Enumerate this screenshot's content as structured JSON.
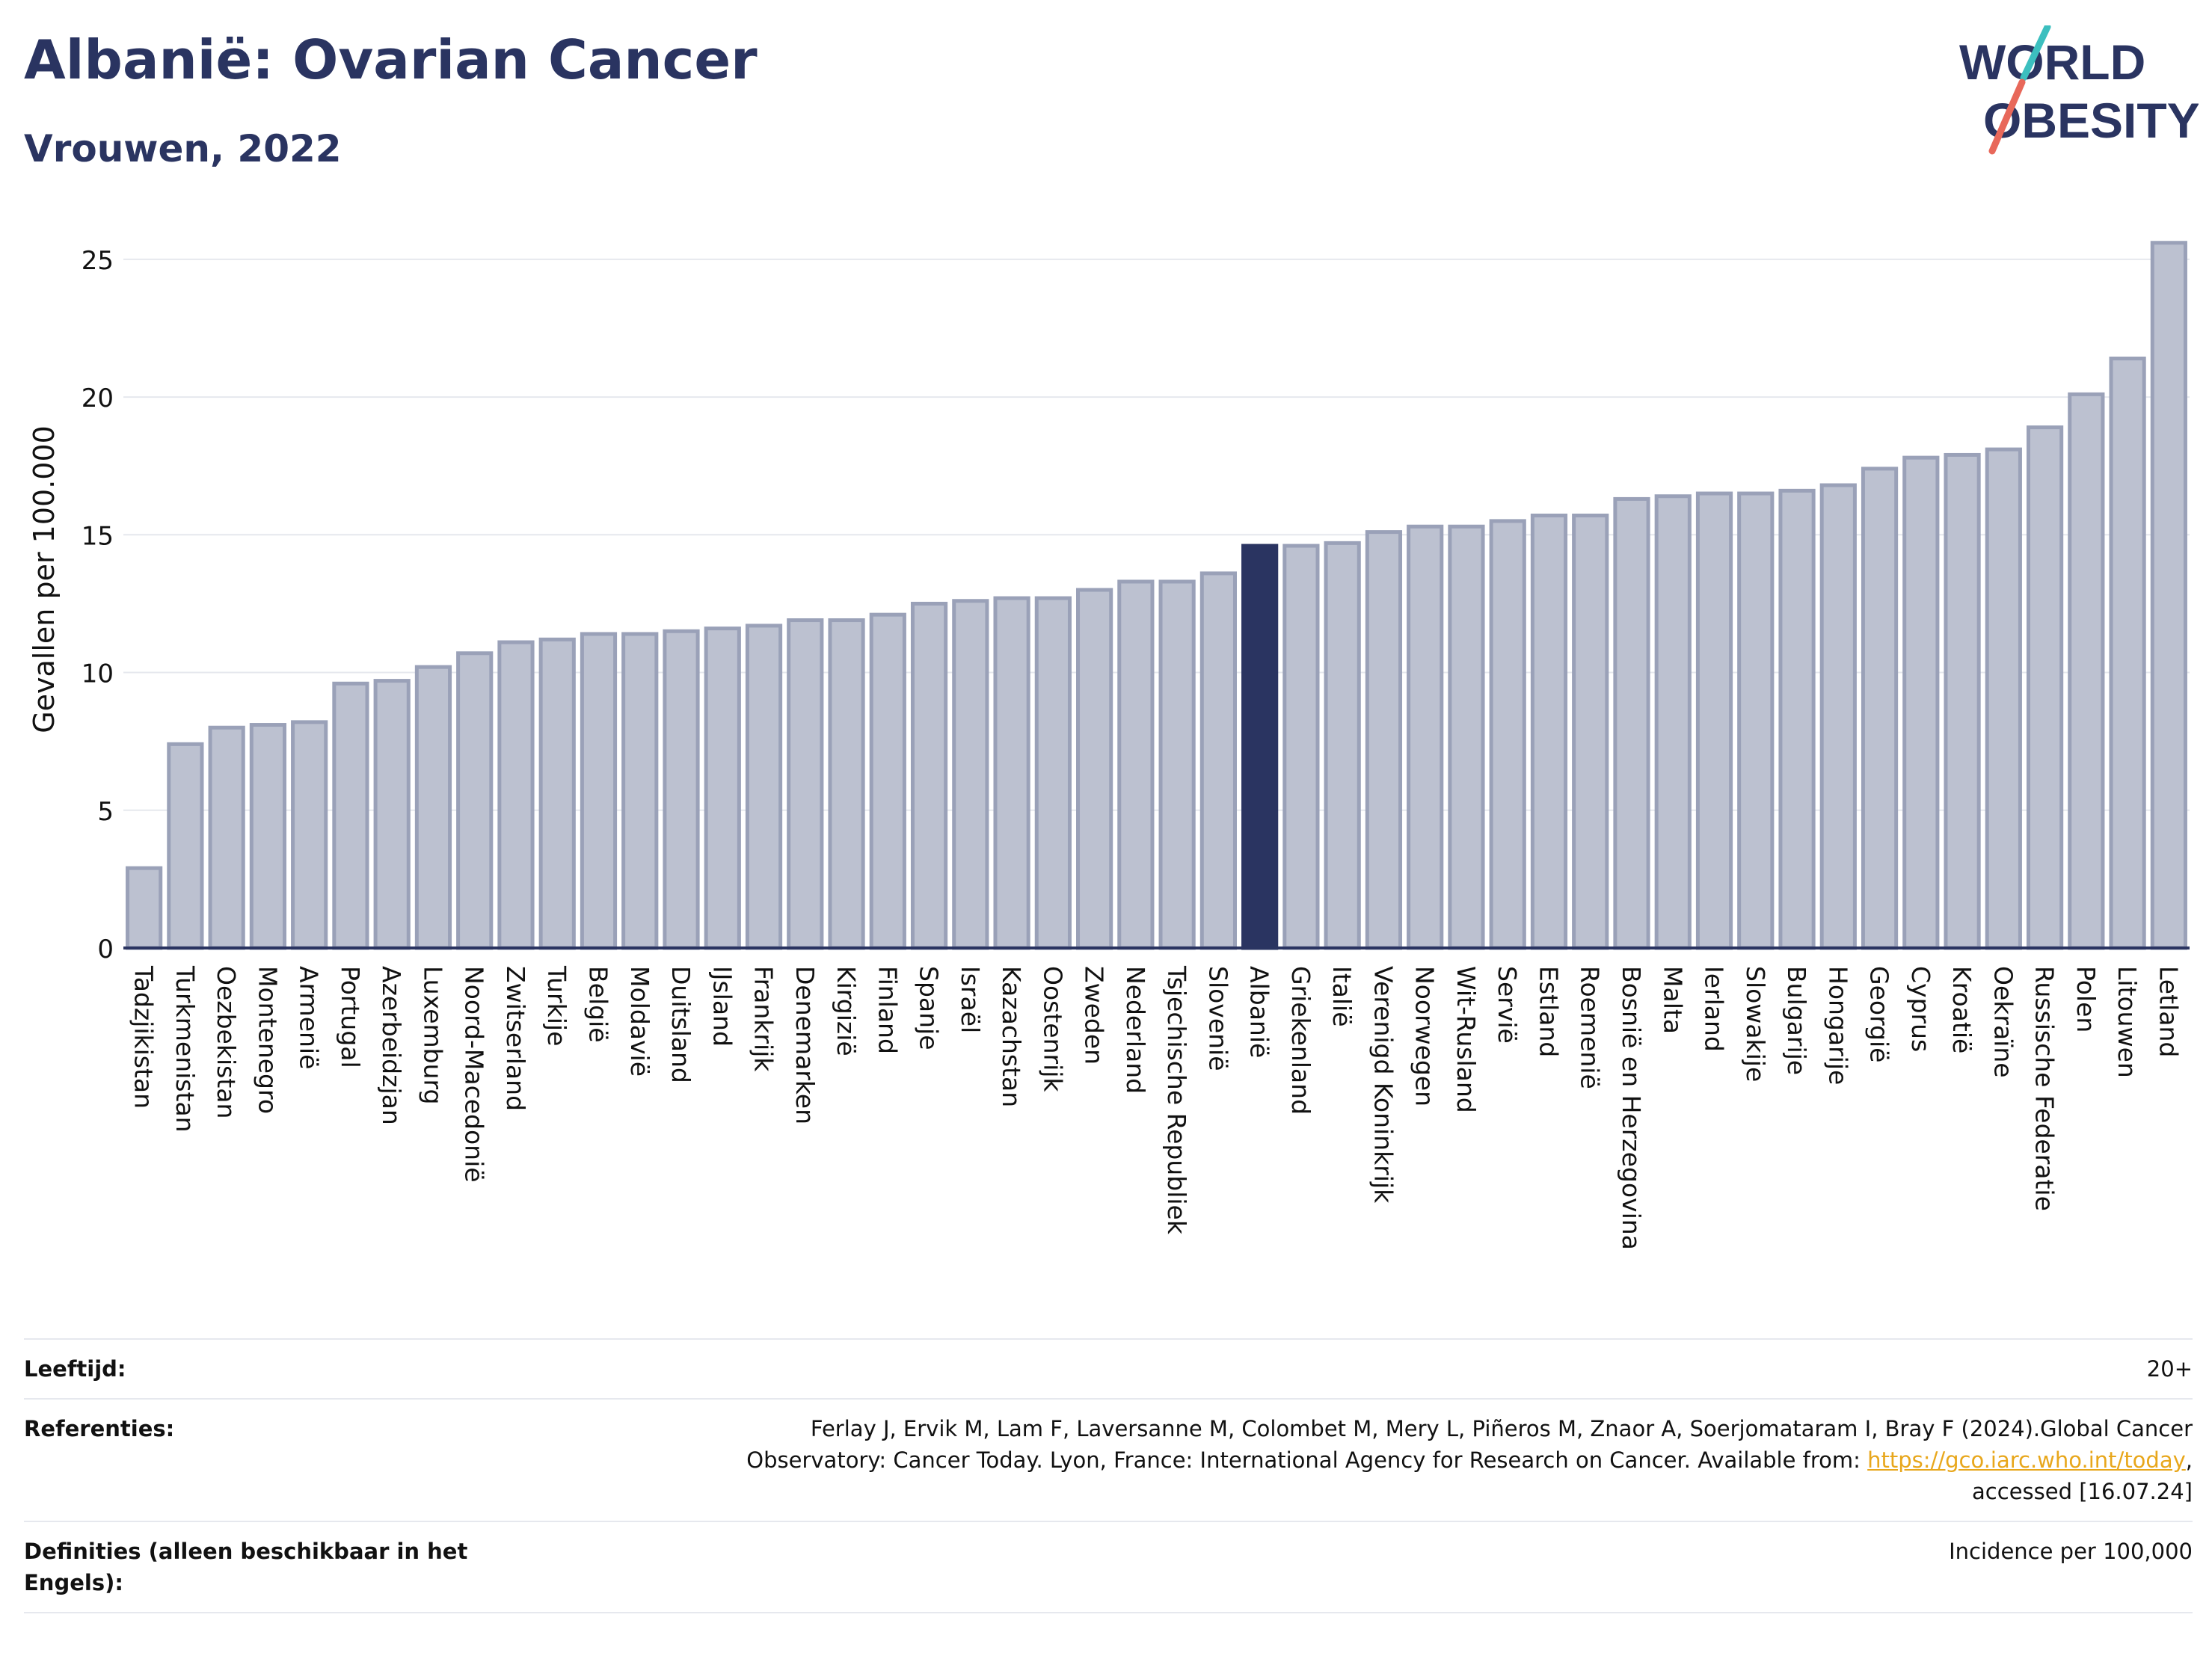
{
  "title": "Albanië: Ovarian Cancer",
  "subtitle": "Vrouwen, 2022",
  "logo": {
    "line1": "WORLD",
    "line2": "OBESITY",
    "accent_teal": "#3cbfbf",
    "accent_red": "#e8685a"
  },
  "colors": {
    "bar": "#bcc1d0",
    "bar_stroke": "#9aa1b8",
    "highlight": "#2a3461",
    "axis": "#2a3461",
    "grid": "#e6e8ee"
  },
  "chart_data": {
    "type": "bar",
    "ylabel": "Gevallen per 100.000",
    "ylim": [
      0,
      26
    ],
    "yticks": [
      0,
      5,
      10,
      15,
      20,
      25
    ],
    "highlight": "Albanië",
    "categories": [
      "Tadzjikistan",
      "Turkmenistan",
      "Oezbekistan",
      "Montenegro",
      "Armenië",
      "Portugal",
      "Azerbeidzjan",
      "Luxemburg",
      "Noord-Macedonië",
      "Zwitserland",
      "Turkije",
      "België",
      "Moldavië",
      "Duitsland",
      "IJsland",
      "Frankrijk",
      "Denemarken",
      "Kirgizië",
      "Finland",
      "Spanje",
      "Israël",
      "Kazachstan",
      "Oostenrijk",
      "Zweden",
      "Nederland",
      "Tsjechische Republiek",
      "Slovenië",
      "Albanië",
      "Griekenland",
      "Italië",
      "Verenigd Koninkrijk",
      "Noorwegen",
      "Wit-Rusland",
      "Servië",
      "Estland",
      "Roemenië",
      "Bosnië en Herzegovina",
      "Malta",
      "Ierland",
      "Slowakije",
      "Bulgarije",
      "Hongarije",
      "Georgië",
      "Cyprus",
      "Kroatië",
      "Oekraïne",
      "Russische Federatie",
      "Polen",
      "Litouwen",
      "Letland"
    ],
    "values": [
      2.9,
      7.4,
      8.0,
      8.1,
      8.2,
      9.6,
      9.7,
      10.2,
      10.7,
      11.1,
      11.2,
      11.4,
      11.4,
      11.5,
      11.6,
      11.7,
      11.9,
      11.9,
      12.1,
      12.5,
      12.6,
      12.7,
      12.7,
      13.0,
      13.3,
      13.3,
      13.6,
      14.6,
      14.6,
      14.7,
      15.1,
      15.3,
      15.3,
      15.5,
      15.7,
      15.7,
      16.3,
      16.4,
      16.5,
      16.5,
      16.6,
      16.8,
      17.4,
      17.8,
      17.9,
      18.1,
      18.9,
      20.1,
      21.4,
      25.6
    ]
  },
  "footer": {
    "age_label": "Leeftijd:",
    "age_value": "20+",
    "ref_label": "Referenties:",
    "ref_line1": "Ferlay J, Ervik M, Lam F, Laversanne M, Colombet M, Mery L, Piñeros M, Znaor A, Soerjomataram I, Bray F (2024).Global Cancer",
    "ref_line2_pre": "Observatory: Cancer Today. Lyon, France: International Agency for Research on Cancer. Available from: ",
    "ref_link": "https://gco.iarc.who.int/today",
    "ref_line2_post": ",",
    "ref_line3": "accessed [16.07.24]",
    "def_label": "Definities (alleen beschikbaar in het Engels):",
    "def_value": "Incidence per 100,000"
  }
}
